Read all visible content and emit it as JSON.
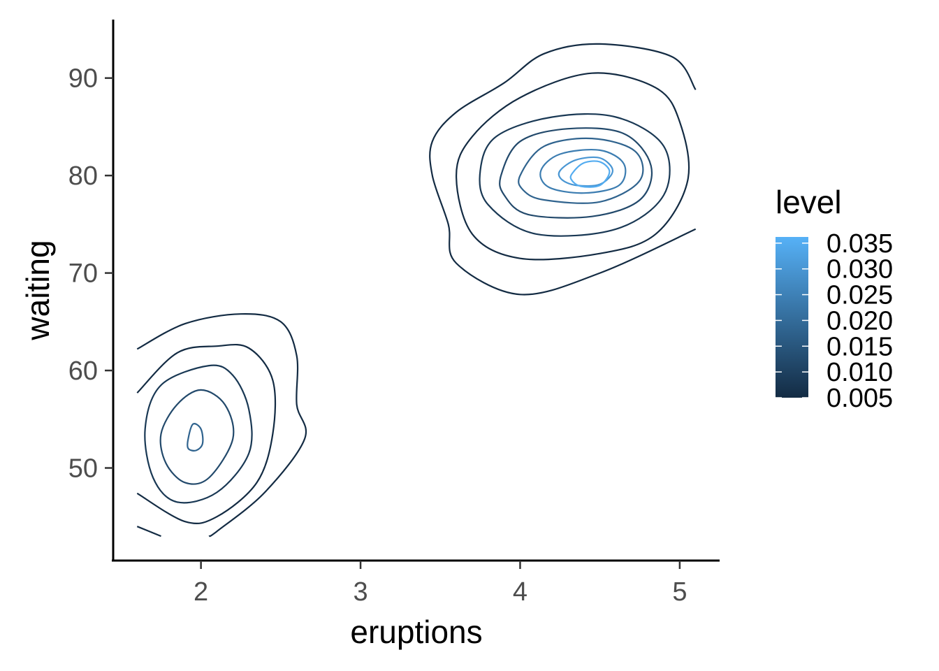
{
  "chart_data": {
    "type": "contour",
    "xlabel": "eruptions",
    "ylabel": "waiting",
    "xlim": [
      1.45,
      5.25
    ],
    "ylim": [
      40.5,
      96
    ],
    "x_ticks": [
      {
        "value": 2,
        "label": "2"
      },
      {
        "value": 3,
        "label": "3"
      },
      {
        "value": 4,
        "label": "4"
      },
      {
        "value": 5,
        "label": "5"
      }
    ],
    "y_ticks": [
      {
        "value": 50,
        "label": "50"
      },
      {
        "value": 60,
        "label": "60"
      },
      {
        "value": 70,
        "label": "70"
      },
      {
        "value": 80,
        "label": "80"
      },
      {
        "value": 90,
        "label": "90"
      }
    ],
    "grid": false,
    "legend": {
      "title": "level",
      "position": "right",
      "color_low": "#132B43",
      "color_high": "#56B1F7",
      "range": [
        0.005,
        0.0362
      ],
      "breaks": [
        {
          "value": 0.005,
          "label": "0.005"
        },
        {
          "value": 0.01,
          "label": "0.010"
        },
        {
          "value": 0.015,
          "label": "0.015"
        },
        {
          "value": 0.02,
          "label": "0.020"
        },
        {
          "value": 0.025,
          "label": "0.025"
        },
        {
          "value": 0.03,
          "label": "0.030"
        },
        {
          "value": 0.035,
          "label": "0.035"
        }
      ]
    },
    "contours": [
      {
        "level": 0.002,
        "closed": false,
        "points": [
          [
            1.6,
            62.2
          ],
          [
            1.9,
            64.8
          ],
          [
            2.25,
            65.8
          ],
          [
            2.5,
            65.0
          ],
          [
            2.6,
            61.5
          ],
          [
            2.6,
            56.5
          ],
          [
            2.65,
            53.0
          ],
          [
            2.4,
            47.5
          ],
          [
            2.1,
            43.5
          ],
          [
            2.05,
            43.0
          ]
        ]
      },
      {
        "level": 0.002,
        "closed": false,
        "points": [
          [
            1.6,
            44.0
          ],
          [
            1.75,
            43.0
          ]
        ]
      },
      {
        "level": 0.002,
        "closed": false,
        "points": [
          [
            5.1,
            88.8
          ],
          [
            4.95,
            92.2
          ],
          [
            4.5,
            93.5
          ],
          [
            4.15,
            92.5
          ],
          [
            3.9,
            89.5
          ],
          [
            3.6,
            86.5
          ],
          [
            3.45,
            83.5
          ],
          [
            3.45,
            80.0
          ],
          [
            3.55,
            75.0
          ],
          [
            3.6,
            71.0
          ],
          [
            4.0,
            67.8
          ],
          [
            4.5,
            70.0
          ],
          [
            5.1,
            74.5
          ]
        ]
      },
      {
        "level": 0.004,
        "closed": false,
        "points": [
          [
            1.6,
            57.7
          ],
          [
            1.85,
            61.8
          ],
          [
            2.1,
            62.5
          ],
          [
            2.3,
            62.3
          ],
          [
            2.45,
            59.0
          ],
          [
            2.45,
            53.5
          ],
          [
            2.35,
            48.5
          ],
          [
            2.1,
            45.0
          ],
          [
            1.9,
            44.5
          ],
          [
            1.6,
            47.4
          ]
        ]
      },
      {
        "level": 0.004,
        "closed": true,
        "points": [
          [
            3.7,
            84.0
          ],
          [
            4.0,
            88.0
          ],
          [
            4.45,
            90.5
          ],
          [
            4.85,
            89.0
          ],
          [
            5.0,
            85.5
          ],
          [
            5.05,
            79.5
          ],
          [
            4.85,
            74.0
          ],
          [
            4.5,
            72.0
          ],
          [
            4.0,
            71.5
          ],
          [
            3.7,
            74.0
          ],
          [
            3.6,
            80.0
          ]
        ]
      },
      {
        "level": 0.008,
        "closed": true,
        "points": [
          [
            1.65,
            54.0
          ],
          [
            1.75,
            58.5
          ],
          [
            2.05,
            60.5
          ],
          [
            2.2,
            59.5
          ],
          [
            2.3,
            56.0
          ],
          [
            2.3,
            51.5
          ],
          [
            2.1,
            47.5
          ],
          [
            1.85,
            46.5
          ],
          [
            1.7,
            49.0
          ]
        ]
      },
      {
        "level": 0.008,
        "closed": true,
        "points": [
          [
            3.75,
            80.5
          ],
          [
            3.85,
            84.0
          ],
          [
            4.2,
            86.0
          ],
          [
            4.6,
            86.0
          ],
          [
            4.9,
            83.0
          ],
          [
            4.9,
            78.0
          ],
          [
            4.6,
            74.5
          ],
          [
            4.1,
            74.0
          ],
          [
            3.8,
            77.0
          ]
        ]
      },
      {
        "level": 0.012,
        "closed": true,
        "points": [
          [
            1.75,
            53.5
          ],
          [
            1.85,
            56.5
          ],
          [
            2.0,
            58.0
          ],
          [
            2.15,
            56.5
          ],
          [
            2.2,
            53.0
          ],
          [
            2.05,
            49.0
          ],
          [
            1.9,
            48.5
          ],
          [
            1.78,
            50.5
          ]
        ]
      },
      {
        "level": 0.012,
        "closed": true,
        "points": [
          [
            3.88,
            80.0
          ],
          [
            4.0,
            83.5
          ],
          [
            4.3,
            84.8
          ],
          [
            4.65,
            84.3
          ],
          [
            4.82,
            81.0
          ],
          [
            4.75,
            77.5
          ],
          [
            4.45,
            75.8
          ],
          [
            4.05,
            76.0
          ],
          [
            3.9,
            78.0
          ]
        ]
      },
      {
        "level": 0.018,
        "closed": true,
        "points": [
          [
            1.92,
            53.0
          ],
          [
            1.95,
            54.5
          ],
          [
            2.0,
            54.0
          ],
          [
            2.01,
            52.5
          ],
          [
            1.97,
            51.8
          ],
          [
            1.92,
            52.0
          ]
        ]
      },
      {
        "level": 0.018,
        "closed": true,
        "points": [
          [
            4.0,
            80.0
          ],
          [
            4.15,
            83.0
          ],
          [
            4.45,
            83.8
          ],
          [
            4.72,
            82.5
          ],
          [
            4.75,
            79.5
          ],
          [
            4.5,
            77.3
          ],
          [
            4.15,
            77.5
          ],
          [
            4.02,
            78.5
          ]
        ]
      },
      {
        "level": 0.024,
        "closed": true,
        "points": [
          [
            4.13,
            80.5
          ],
          [
            4.25,
            82.2
          ],
          [
            4.5,
            82.6
          ],
          [
            4.65,
            81.2
          ],
          [
            4.62,
            79.0
          ],
          [
            4.4,
            78.2
          ],
          [
            4.18,
            78.8
          ]
        ]
      },
      {
        "level": 0.03,
        "closed": true,
        "points": [
          [
            4.25,
            80.5
          ],
          [
            4.35,
            81.6
          ],
          [
            4.5,
            81.8
          ],
          [
            4.58,
            80.5
          ],
          [
            4.5,
            79.1
          ],
          [
            4.35,
            79.0
          ],
          [
            4.26,
            79.6
          ]
        ]
      },
      {
        "level": 0.035,
        "closed": true,
        "points": [
          [
            4.33,
            80.3
          ],
          [
            4.4,
            81.3
          ],
          [
            4.5,
            81.4
          ],
          [
            4.56,
            80.4
          ],
          [
            4.5,
            79.0
          ],
          [
            4.38,
            78.9
          ],
          [
            4.32,
            79.6
          ]
        ]
      }
    ]
  }
}
